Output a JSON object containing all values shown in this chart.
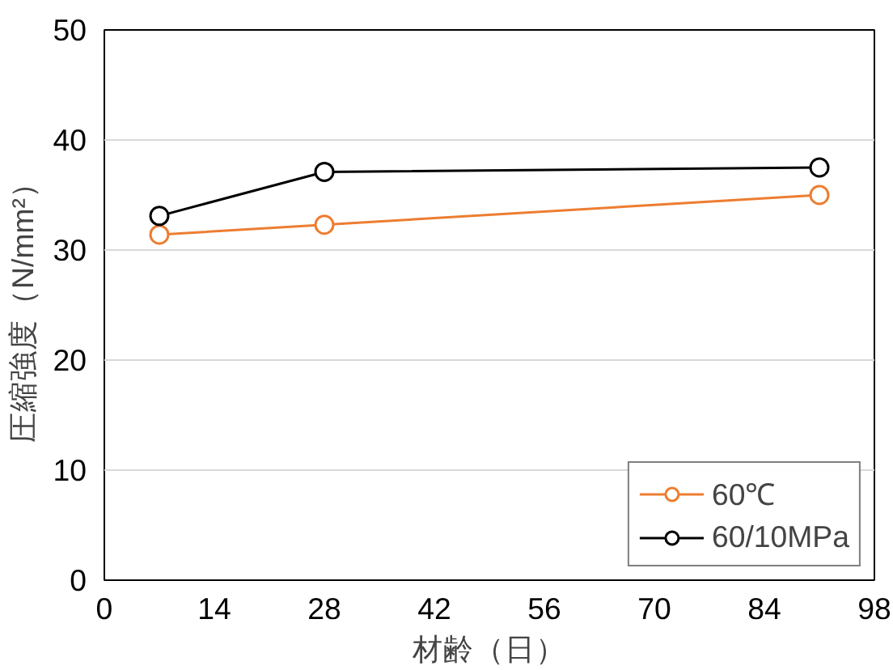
{
  "chart_data": {
    "type": "line",
    "xlabel": "材齢（日）",
    "ylabel": "圧縮強度（N/mm²）",
    "xlim": [
      0,
      98
    ],
    "xticks": [
      0,
      14,
      28,
      42,
      56,
      70,
      84,
      98
    ],
    "ylim": [
      0,
      50
    ],
    "yticks": [
      0,
      10,
      20,
      30,
      40,
      50
    ],
    "grid": "y",
    "legend": "bottom right",
    "marker": "circle",
    "line_style": "solid",
    "series": [
      {
        "name": "60℃",
        "color": "#ed7d31",
        "x": [
          7,
          28,
          91
        ],
        "values": [
          31.4,
          32.3,
          35.0
        ]
      },
      {
        "name": "60/10MPa",
        "color": "#000000",
        "x": [
          7,
          28,
          91
        ],
        "values": [
          33.1,
          37.1,
          37.5
        ]
      }
    ]
  }
}
